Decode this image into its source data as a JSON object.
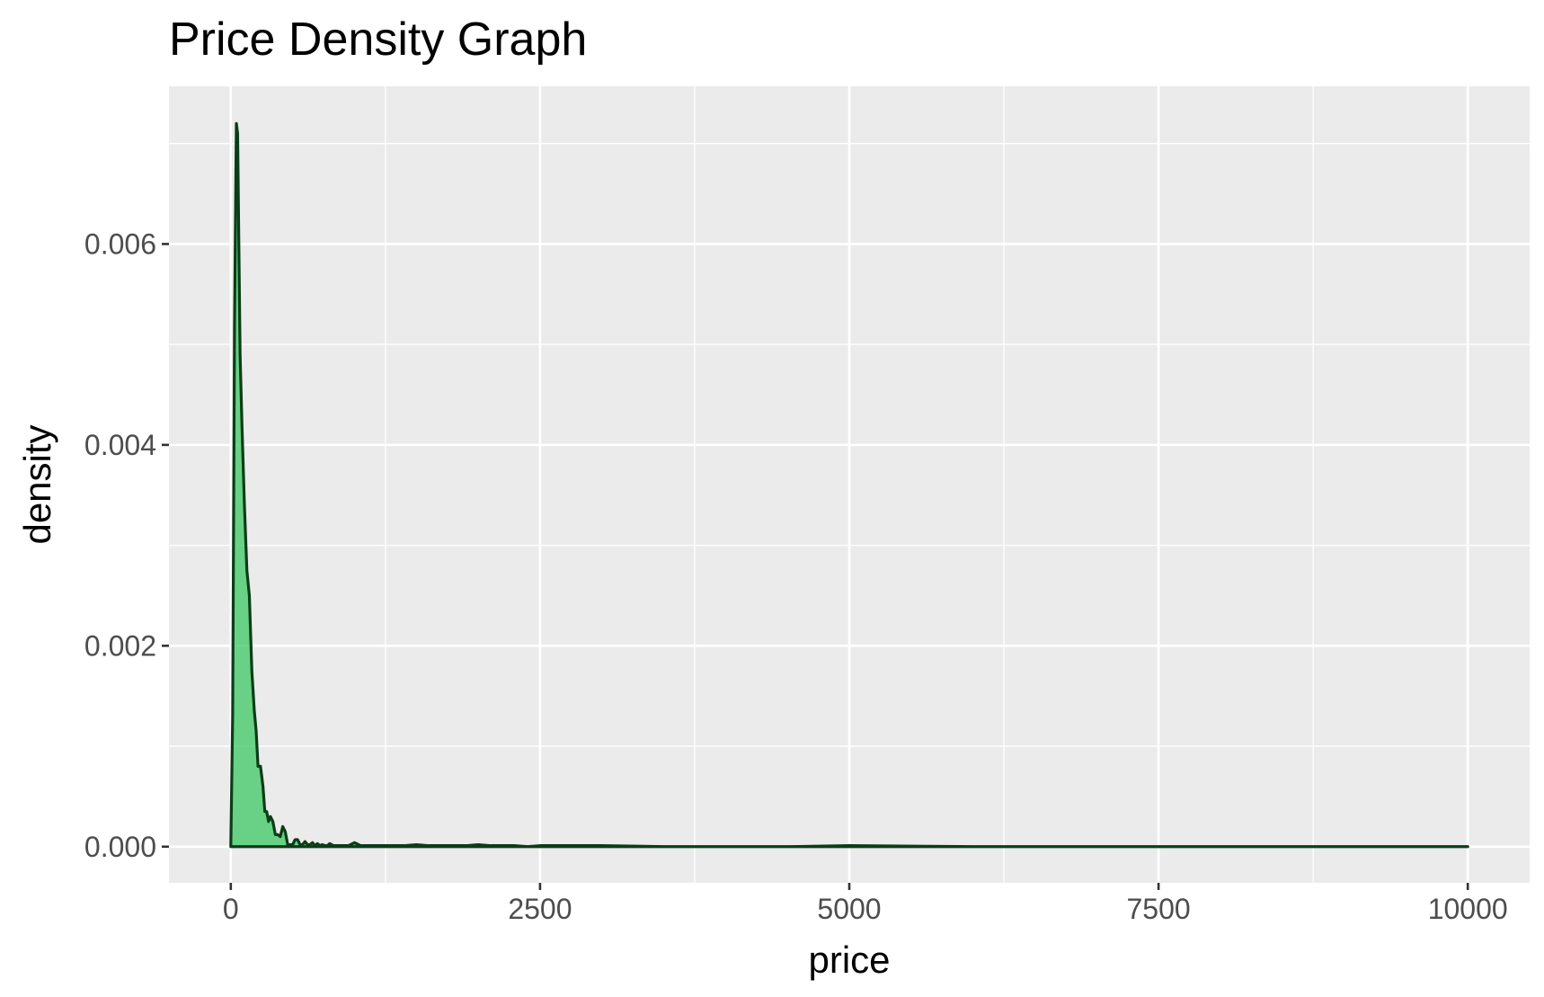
{
  "chart_data": {
    "type": "area",
    "title": "Price Density Graph",
    "xlabel": "price",
    "ylabel": "density",
    "xlim": [
      -500,
      10500
    ],
    "ylim": [
      -0.00036,
      0.00757
    ],
    "x_ticks": [
      0,
      2500,
      5000,
      7500,
      10000
    ],
    "x_tick_labels": [
      "0",
      "2500",
      "5000",
      "7500",
      "10000"
    ],
    "y_ticks": [
      0,
      0.002,
      0.004,
      0.006
    ],
    "y_tick_labels": [
      "0.000",
      "0.002",
      "0.004",
      "0.006"
    ],
    "grid": true,
    "legend": "none",
    "colors": {
      "panel_background": "#ebebeb",
      "grid_line": "#ffffff",
      "fill": "#3cc864",
      "line": "#0b3d16"
    },
    "series": [
      {
        "x": [
          0,
          15,
          30,
          45,
          55,
          65,
          75,
          90,
          110,
          130,
          150,
          170,
          190,
          205,
          220,
          240,
          260,
          275,
          290,
          305,
          320,
          340,
          360,
          380,
          400,
          420,
          440,
          460,
          480,
          500,
          520,
          540,
          560,
          580,
          600,
          620,
          640,
          660,
          680,
          700,
          720,
          740,
          760,
          780,
          800,
          830,
          860,
          900,
          950,
          1000,
          1050,
          1100,
          1200,
          1300,
          1400,
          1500,
          1600,
          1700,
          1800,
          1900,
          2000,
          2100,
          2200,
          2300,
          2400,
          2500,
          3000,
          3500,
          4000,
          4500,
          5000,
          6000,
          7000,
          8000,
          9000,
          10000
        ],
        "y": [
          0,
          0.0013,
          0.0052,
          0.0072,
          0.0071,
          0.006,
          0.0049,
          0.0042,
          0.0034,
          0.00275,
          0.0025,
          0.00175,
          0.00135,
          0.00115,
          0.0008,
          0.0008,
          0.0006,
          0.00035,
          0.00035,
          0.00025,
          0.0003,
          0.00025,
          0.00012,
          0.00012,
          0.0001,
          0.0002,
          0.00015,
          2e-05,
          2e-05,
          2e-05,
          7e-05,
          7e-05,
          2e-05,
          2e-05,
          5e-05,
          2e-05,
          2e-05,
          4e-05,
          1e-05,
          3e-05,
          1e-05,
          2e-05,
          1e-05,
          1e-05,
          3e-05,
          1e-05,
          1e-05,
          1e-05,
          1e-05,
          4e-05,
          1e-05,
          1e-05,
          1e-05,
          1e-05,
          1e-05,
          2e-05,
          1e-05,
          1e-05,
          1e-05,
          1e-05,
          2e-05,
          1e-05,
          1e-05,
          1e-05,
          0,
          1e-05,
          1e-05,
          0,
          0,
          0,
          1e-05,
          0,
          0,
          0,
          0,
          0
        ]
      }
    ]
  }
}
